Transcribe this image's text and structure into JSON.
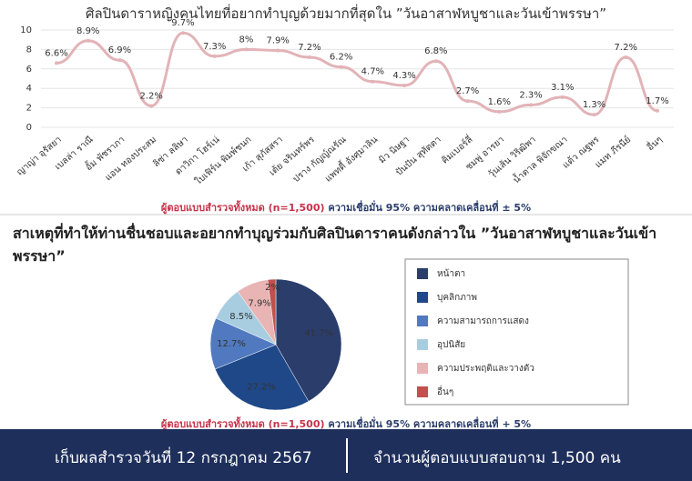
{
  "chart_data": [
    {
      "type": "line",
      "title": "ศิลปินดาราหญิงคนไทยที่อยากทำบุญด้วยมากที่สุดใน ”วันอาสาฬหบูชาและวันเข้าพรรษา”",
      "categories": [
        "ญาญ่า อุรัสยา",
        "เบลล่า ราณี",
        "อั้ม พัชราภา",
        "แอน ทองประสม",
        "ลิซ่า ลลิษา",
        "ดาวิกา โฮร์เน่",
        "ใบเฟิร์น พิมพ์ชนก",
        "เก้า สุภัสสรา",
        "เต้ย จรินทร์พร",
        "ปราง กัญญ์ณรัณ",
        "แพทตี้ อังศุมาลิน",
        "มิว นิษฐา",
        "ปันปัน สุทัตตา",
        "คิมเบอร์ลี่",
        "ชมพู่ อารยา",
        "วุ้นเส้น วิริฒิพา",
        "น้ำตาล พิจักขณา",
        "แต้ว ณฐพร",
        "แมท ภีรนีย์",
        "อื่นๆ"
      ],
      "values": [
        6.6,
        8.9,
        6.9,
        2.2,
        9.7,
        7.3,
        8,
        7.9,
        7.2,
        6.2,
        4.7,
        4.3,
        6.8,
        2.7,
        1.6,
        2.3,
        3.1,
        1.3,
        7.2,
        1.7
      ],
      "value_labels": [
        "6.6%",
        "8.9%",
        "6.9%",
        "2.2%",
        "9.7%",
        "7.3%",
        "8%",
        "7.9%",
        "7.2%",
        "6.2%",
        "4.7%",
        "4.3%",
        "6.8%",
        "2.7%",
        "1.6%",
        "2.3%",
        "3.1%",
        "1.3%",
        "7.2%",
        "1.7%"
      ],
      "color": "#e2b3b7",
      "ylim": [
        0,
        10
      ],
      "yticks": [
        0,
        2,
        4,
        6,
        8,
        10
      ],
      "grid": true,
      "note_sample": "ผู้ตอบแบบสำรวจทั้งหมด (n=1,500)",
      "note_confidence": "ความเชื่อมั่น 95% ความคลาดเคลื่อนที่ ± 5%"
    },
    {
      "type": "pie",
      "title": "สาเหตุที่ทำให้ท่านชื่นชอบและอยากทำบุญร่วมกับศิลปินดาราคนดังกล่าวใน ”วันอาสาฬหบูชาและวันเข้าพรรษา”",
      "categories": [
        "หน้าตา",
        "บุคลิกภาพ",
        "ความสามารถการแสดง",
        "อุปนิสัย",
        "ความประพฤติและวางตัว",
        "อื่นๆ"
      ],
      "values": [
        41.7,
        27.2,
        12.7,
        8.5,
        7.9,
        2
      ],
      "value_labels": [
        "41.7%",
        "27.2%",
        "12.7%",
        "8.5%",
        "7.9%",
        "2%"
      ],
      "colors": [
        "#2b3d6b",
        "#1f4888",
        "#5079c0",
        "#a8cde0",
        "#e8b4b4",
        "#c2504e"
      ],
      "note_sample": "ผู้ตอบแบบสำรวจทั้งหมด (n=1,500)",
      "note_confidence": "ความเชื่อมั่น 95% ความคลาดเคลื่อนที่ + 5%"
    }
  ],
  "footer": {
    "date": "เก็บผลสำรวจวันที่ 12 กรกฎาคม 2567",
    "respondents": "จำนวนผู้ตอบแบบสอบถาม 1,500 คน"
  }
}
